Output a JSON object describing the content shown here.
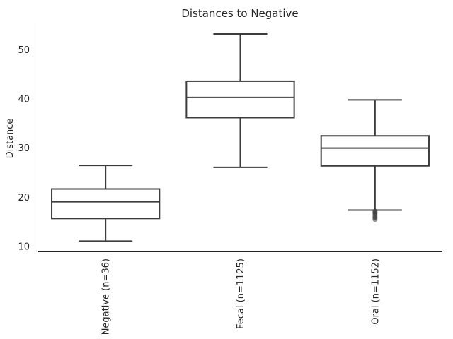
{
  "chart_data": {
    "type": "box",
    "title": "Distances to Negative",
    "ylabel": "Distance",
    "xlabel": "",
    "ylim": [
      9,
      55.5
    ],
    "yticks": [
      10,
      20,
      30,
      40,
      50
    ],
    "grid": false,
    "categories": [
      "Negative (n=36)",
      "Fecal (n=1125)",
      "Oral (n=1152)"
    ],
    "boxes": [
      {
        "whisker_low": 11.1,
        "q1": 15.7,
        "median": 19.1,
        "q3": 21.7,
        "whisker_high": 26.5,
        "outliers": []
      },
      {
        "whisker_low": 26.1,
        "q1": 36.2,
        "median": 40.3,
        "q3": 43.6,
        "whisker_high": 53.2,
        "outliers": []
      },
      {
        "whisker_low": 17.4,
        "q1": 26.4,
        "median": 30.0,
        "q3": 32.5,
        "whisker_high": 39.8,
        "outliers": [
          17.2,
          17.0,
          16.8,
          16.6,
          16.3,
          16.0,
          15.8,
          15.5
        ]
      }
    ]
  }
}
